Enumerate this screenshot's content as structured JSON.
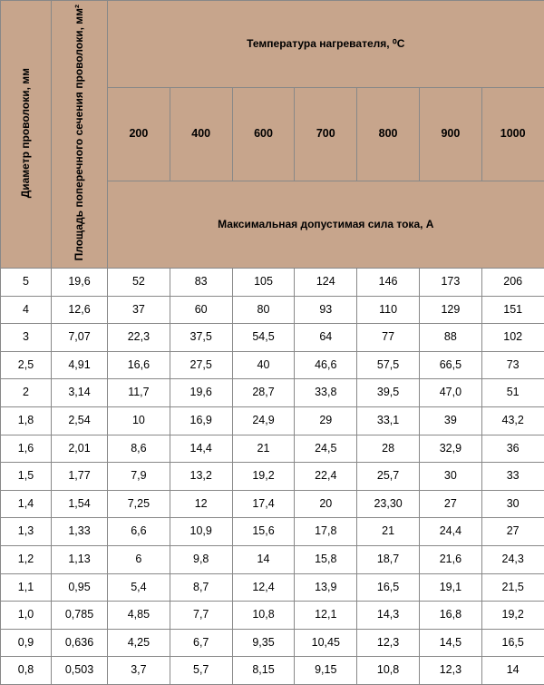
{
  "header": {
    "col1": "Диаметр проволоки, мм",
    "col2": "Площадь поперечного сечения проволоки, мм²",
    "top": "Температура нагревателя, ⁰С",
    "temps": [
      "200",
      "400",
      "600",
      "700",
      "800",
      "900",
      "1000"
    ],
    "sub": "Максимальная допустимая сила тока, А"
  },
  "rows": [
    {
      "d": "5",
      "a": "19,6",
      "v": [
        "52",
        "83",
        "105",
        "124",
        "146",
        "173",
        "206"
      ]
    },
    {
      "d": "4",
      "a": "12,6",
      "v": [
        "37",
        "60",
        "80",
        "93",
        "110",
        "129",
        "151"
      ]
    },
    {
      "d": "3",
      "a": "7,07",
      "v": [
        "22,3",
        "37,5",
        "54,5",
        "64",
        "77",
        "88",
        "102"
      ]
    },
    {
      "d": "2,5",
      "a": "4,91",
      "v": [
        "16,6",
        "27,5",
        "40",
        "46,6",
        "57,5",
        "66,5",
        "73"
      ]
    },
    {
      "d": "2",
      "a": "3,14",
      "v": [
        "11,7",
        "19,6",
        "28,7",
        "33,8",
        "39,5",
        "47,0",
        "51"
      ]
    },
    {
      "d": "1,8",
      "a": "2,54",
      "v": [
        "10",
        "16,9",
        "24,9",
        "29",
        "33,1",
        "39",
        "43,2"
      ]
    },
    {
      "d": "1,6",
      "a": "2,01",
      "v": [
        "8,6",
        "14,4",
        "21",
        "24,5",
        "28",
        "32,9",
        "36"
      ]
    },
    {
      "d": "1,5",
      "a": "1,77",
      "v": [
        "7,9",
        "13,2",
        "19,2",
        "22,4",
        "25,7",
        "30",
        "33"
      ]
    },
    {
      "d": "1,4",
      "a": "1,54",
      "v": [
        "7,25",
        "12",
        "17,4",
        "20",
        "23,30",
        "27",
        "30"
      ]
    },
    {
      "d": "1,3",
      "a": "1,33",
      "v": [
        "6,6",
        "10,9",
        "15,6",
        "17,8",
        "21",
        "24,4",
        "27"
      ]
    },
    {
      "d": "1,2",
      "a": "1,13",
      "v": [
        "6",
        "9,8",
        "14",
        "15,8",
        "18,7",
        "21,6",
        "24,3"
      ]
    },
    {
      "d": "1,1",
      "a": "0,95",
      "v": [
        "5,4",
        "8,7",
        "12,4",
        "13,9",
        "16,5",
        "19,1",
        "21,5"
      ]
    },
    {
      "d": "1,0",
      "a": "0,785",
      "v": [
        "4,85",
        "7,7",
        "10,8",
        "12,1",
        "14,3",
        "16,8",
        "19,2"
      ]
    },
    {
      "d": "0,9",
      "a": "0,636",
      "v": [
        "4,25",
        "6,7",
        "9,35",
        "10,45",
        "12,3",
        "14,5",
        "16,5"
      ]
    },
    {
      "d": "0,8",
      "a": "0,503",
      "v": [
        "3,7",
        "5,7",
        "8,15",
        "9,15",
        "10,8",
        "12,3",
        "14"
      ]
    }
  ],
  "style": {
    "header_bg": "#c7a58c",
    "border_color": "#888888",
    "body_bg": "#ffffff",
    "font_size_body": 12.5,
    "font_size_header": 12
  }
}
